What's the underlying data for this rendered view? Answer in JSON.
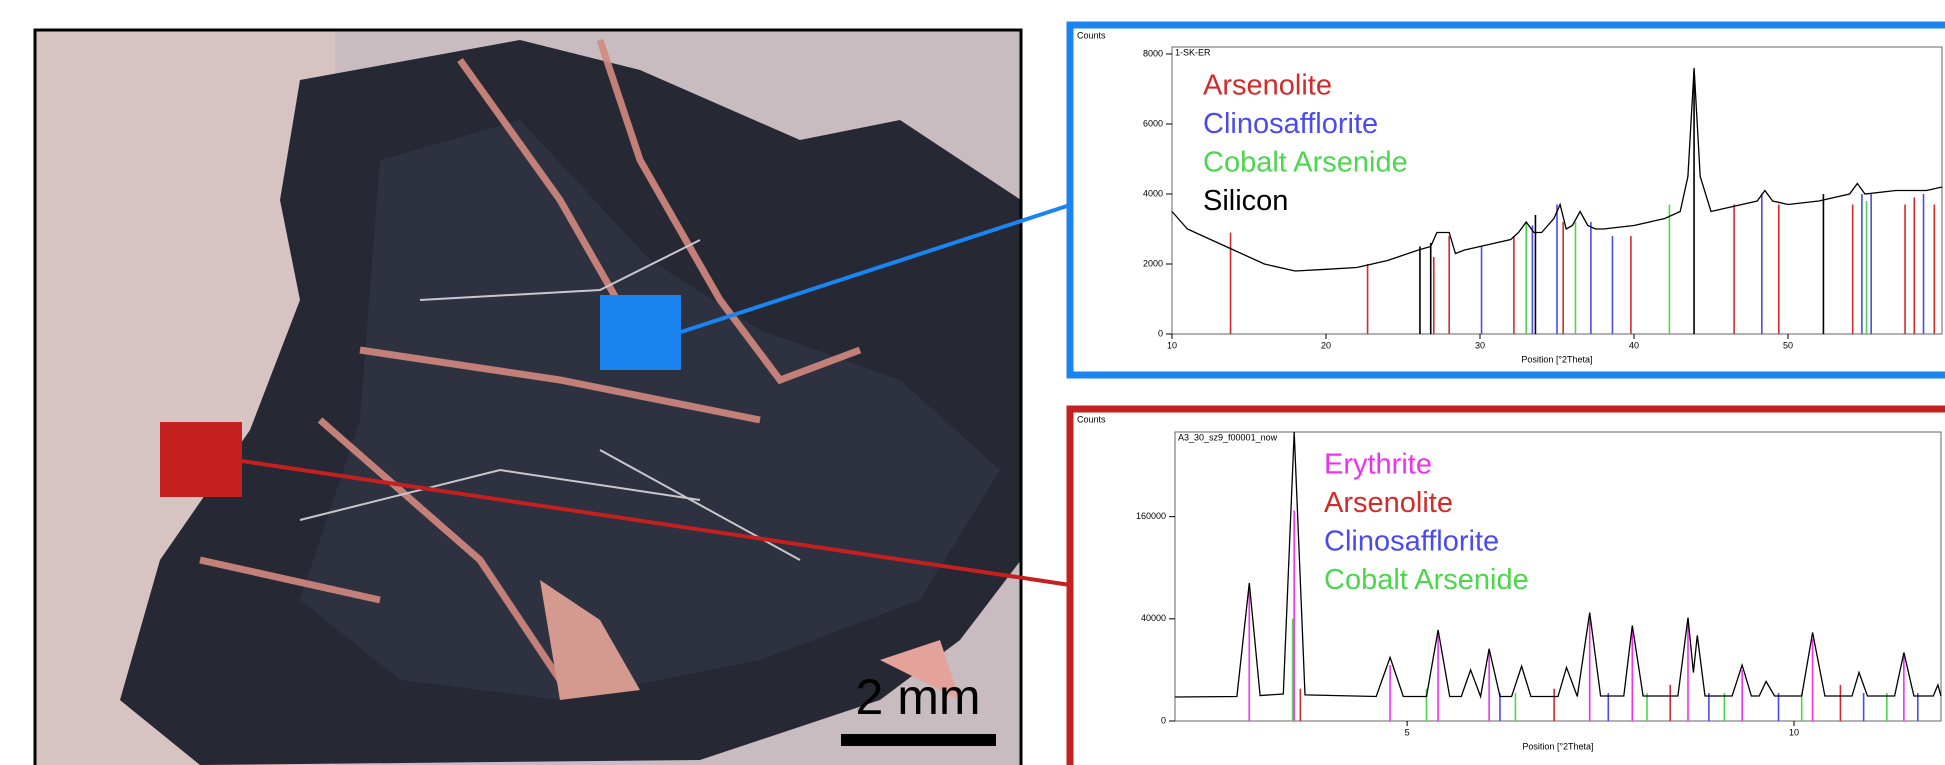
{
  "photo": {
    "scale_label": "2 mm"
  },
  "chart_data": [
    {
      "type": "line",
      "y_label": "Counts",
      "x_label": "Position [°2Theta]",
      "inner_label": "1-SK-ER",
      "xlim": [
        10,
        60
      ],
      "xticks": [
        10,
        20,
        30,
        40,
        50
      ],
      "ylim": [
        0,
        8200
      ],
      "yticks": [
        0,
        2000,
        4000,
        6000,
        8000
      ],
      "pattern": {
        "color": "#000000",
        "x": [
          10,
          11,
          12,
          14,
          16,
          18,
          20,
          22,
          24,
          26,
          26.8,
          27.2,
          28,
          28.4,
          29,
          30,
          32,
          32.5,
          33,
          33.5,
          34,
          34.8,
          35.2,
          35.6,
          36,
          36.5,
          37,
          37.5,
          38,
          40,
          42,
          43,
          43.5,
          43.9,
          44.3,
          45,
          46,
          48,
          48.5,
          49,
          50,
          52,
          54,
          54.5,
          55,
          57,
          59,
          60
        ],
        "values": [
          3500,
          3000,
          2800,
          2400,
          2000,
          1800,
          1850,
          1900,
          2100,
          2400,
          2500,
          2900,
          2900,
          2300,
          2400,
          2500,
          2700,
          2900,
          3200,
          2900,
          2900,
          3300,
          3700,
          3000,
          3100,
          3500,
          3100,
          3000,
          3000,
          3100,
          3300,
          3500,
          4500,
          7600,
          4500,
          3500,
          3600,
          3800,
          4100,
          3800,
          3700,
          3800,
          4000,
          4300,
          4000,
          4100,
          4100,
          4200
        ]
      },
      "series": [
        {
          "name": "Arsenolite",
          "color": "#d42a2a",
          "x": [
            13.8,
            22.7,
            27.0,
            28.0,
            32.2,
            35.4,
            39.8,
            46.5,
            49.4,
            54.2,
            57.6,
            58.2,
            59.5
          ],
          "values": [
            2900,
            2000,
            2200,
            2800,
            2800,
            3200,
            2800,
            3700,
            3700,
            3700,
            3700,
            3900,
            3700
          ]
        },
        {
          "name": "Clinosafflorite",
          "color": "#4a4af0",
          "x": [
            30.1,
            33.4,
            35.0,
            37.2,
            38.6,
            48.3,
            54.8,
            55.4,
            58.8
          ],
          "values": [
            2500,
            3100,
            3700,
            3200,
            2800,
            4000,
            4000,
            4000,
            4000
          ]
        },
        {
          "name": "Cobalt Arsenide",
          "color": "#4cd64c",
          "x": [
            33.0,
            36.2,
            42.3,
            55.1
          ],
          "values": [
            3200,
            3200,
            3700,
            3800
          ]
        },
        {
          "name": "Silicon",
          "color": "#000000",
          "x": [
            26.1,
            26.8,
            33.6,
            43.9,
            52.3
          ],
          "values": [
            2500,
            2600,
            3400,
            7500,
            4000
          ]
        }
      ]
    },
    {
      "type": "line",
      "y_label": "Counts",
      "x_label": "Position [°2Theta]",
      "inner_label": "A3_30_sz9_f00001_now",
      "xlim": [
        2,
        11.9
      ],
      "xticks": [
        5,
        10
      ],
      "ylim": [
        0,
        320000
      ],
      "yticks": [
        0,
        40000,
        160000
      ],
      "yscale": "sqrt",
      "pattern": {
        "color": "#000000",
        "x": [
          2,
          2.8,
          2.96,
          3.1,
          3.4,
          3.54,
          3.68,
          4.6,
          4.78,
          4.95,
          5.25,
          5.4,
          5.55,
          5.7,
          5.82,
          5.95,
          6.06,
          6.2,
          6.35,
          6.48,
          6.6,
          6.95,
          7.06,
          7.2,
          7.36,
          7.5,
          7.8,
          7.91,
          8.05,
          8.5,
          8.63,
          8.7,
          8.75,
          8.85,
          9.2,
          9.33,
          9.45,
          9.55,
          9.64,
          9.75,
          10.1,
          10.24,
          10.4,
          10.75,
          10.84,
          10.95,
          11.3,
          11.42,
          11.55,
          11.8,
          11.86,
          11.9
        ],
        "values": [
          2200,
          2300,
          73000,
          2500,
          2800,
          320000,
          2600,
          2300,
          15500,
          2300,
          2300,
          31700,
          2300,
          2300,
          10000,
          2300,
          20000,
          2300,
          2300,
          11500,
          2300,
          2300,
          11000,
          2300,
          45000,
          2400,
          2400,
          35000,
          2400,
          2400,
          41000,
          9000,
          28000,
          2400,
          2400,
          12000,
          2400,
          2400,
          6000,
          2400,
          2400,
          30000,
          2400,
          2400,
          9000,
          2400,
          2400,
          18000,
          2400,
          2400,
          5000,
          2400
        ]
      },
      "series": [
        {
          "name": "Erythrite",
          "color": "#f030f0",
          "x": [
            2.96,
            3.54,
            4.78,
            5.4,
            6.06,
            7.36,
            7.91,
            8.63,
            9.33,
            10.24,
            11.42
          ],
          "values": [
            70000,
            170000,
            12000,
            28000,
            18000,
            42000,
            33000,
            38000,
            10000,
            26000,
            16000
          ]
        },
        {
          "name": "Arsenolite",
          "color": "#d42a2a",
          "x": [
            3.62,
            6.9,
            8.4,
            10.6
          ],
          "values": [
            4000,
            4000,
            5000,
            5000
          ]
        },
        {
          "name": "Clinosafflorite",
          "color": "#4a4af0",
          "x": [
            6.2,
            7.6,
            8.9,
            9.8,
            10.9,
            11.6
          ],
          "values": [
            3000,
            3000,
            3000,
            3000,
            3000,
            3000
          ]
        },
        {
          "name": "Cobalt Arsenide",
          "color": "#4cd64c",
          "x": [
            3.52,
            5.25,
            6.4,
            8.1,
            9.1,
            10.1,
            11.2
          ],
          "values": [
            40000,
            4000,
            3000,
            3000,
            3000,
            3000,
            3000
          ]
        }
      ]
    }
  ]
}
